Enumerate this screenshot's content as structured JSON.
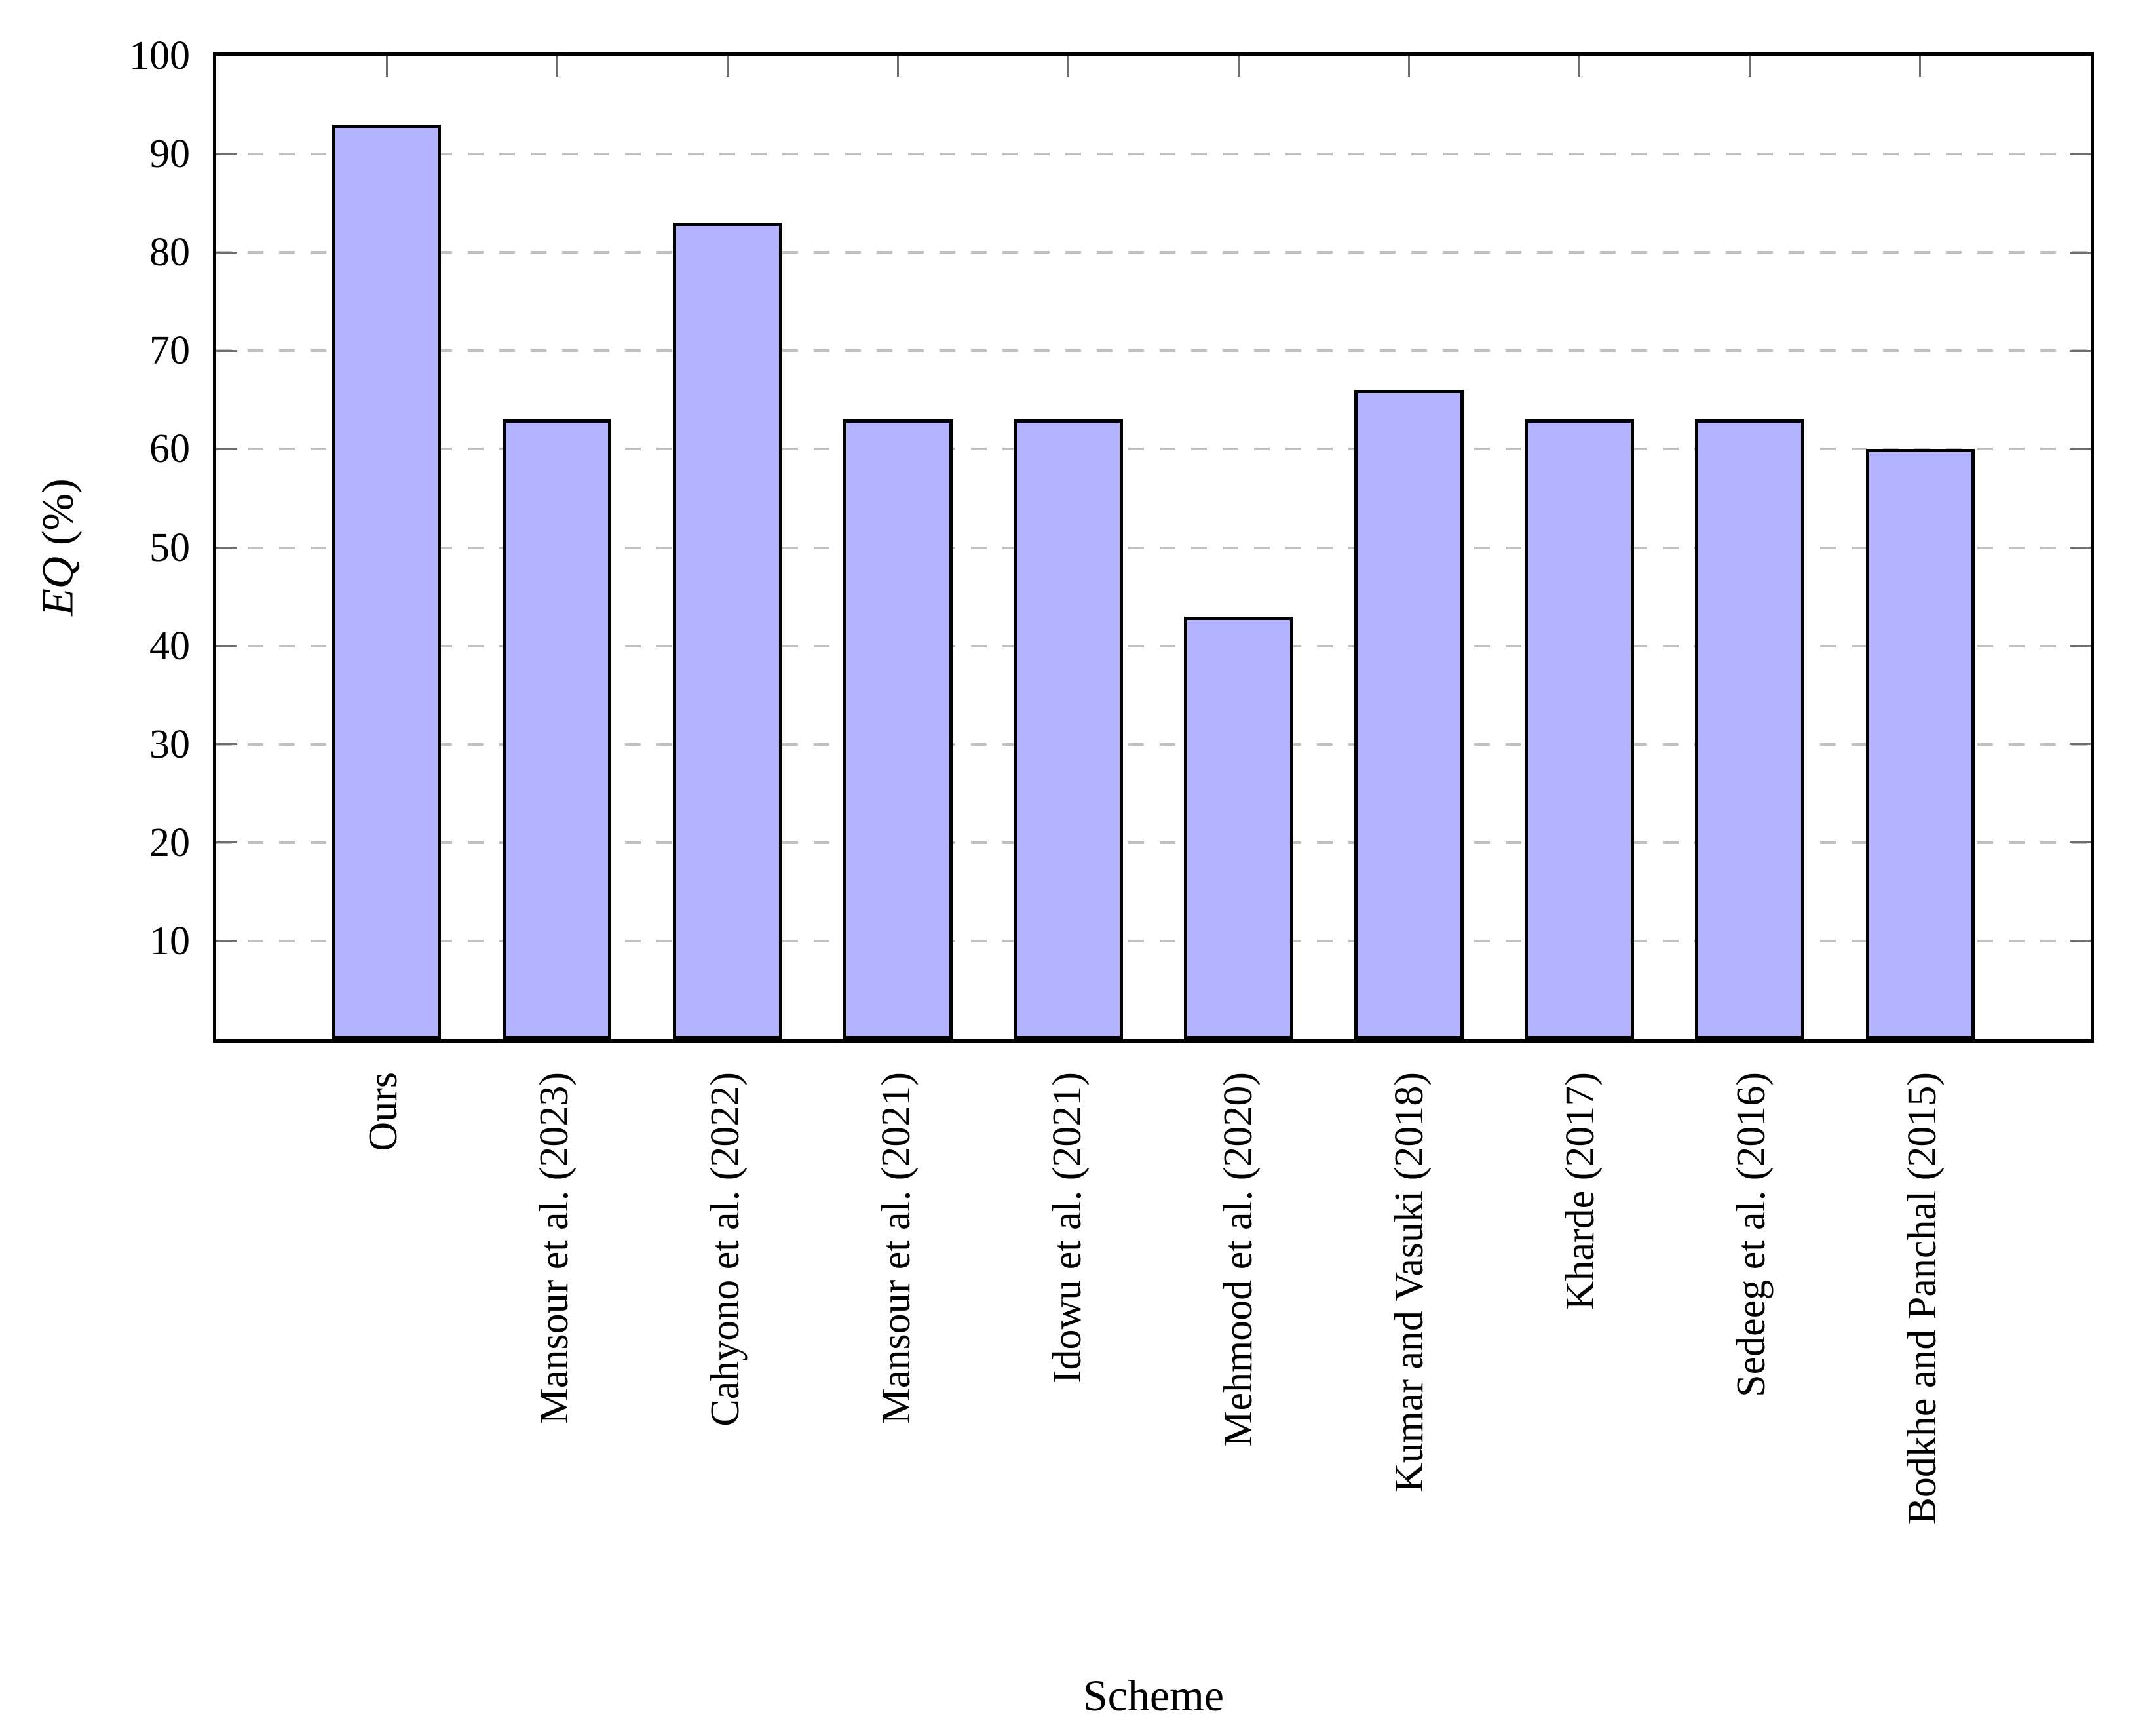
{
  "chart_data": {
    "type": "bar",
    "title": "",
    "xlabel": "Scheme",
    "ylabel": "EQ (%)",
    "ylabel_math_part": "EQ",
    "ylabel_unit_part": " (%)",
    "categories": [
      "Ours",
      "Mansour et al. (2023)",
      "Cahyono et al. (2022)",
      "Mansour et al. (2021)",
      "Idowu et al. (2021)",
      "Mehmood et al. (2020)",
      "Kumar and Vasuki (2018)",
      "Kharde (2017)",
      "Sedeeg et al. (2016)",
      "Bodkhe and Panchal (2015)"
    ],
    "values": [
      93,
      63,
      83,
      63,
      63,
      43,
      66,
      63,
      63,
      60
    ],
    "ylim": [
      0,
      100
    ],
    "yticks": [
      10,
      20,
      30,
      40,
      50,
      60,
      70,
      80,
      90,
      100
    ],
    "grid": "horizontal-dashed",
    "legend_position": "none",
    "colors": {
      "bar_fill": "#b3b3ff",
      "bar_border": "#000000",
      "axis": "#000000",
      "gridline": "#c0c0c0",
      "tick": "#6e6e6e",
      "text": "#000000"
    }
  }
}
